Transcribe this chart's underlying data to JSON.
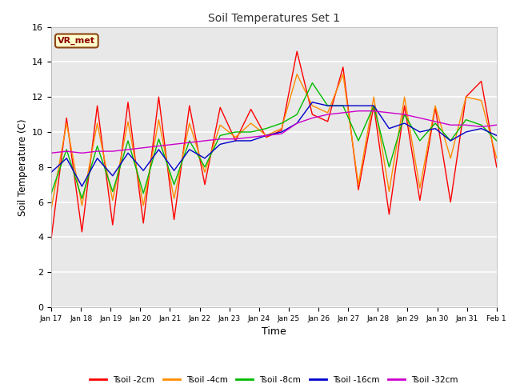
{
  "title": "Soil Temperatures Set 1",
  "xlabel": "Time",
  "ylabel": "Soil Temperature (C)",
  "annotation": "VR_met",
  "ylim": [
    0,
    16
  ],
  "yticks": [
    0,
    2,
    4,
    6,
    8,
    10,
    12,
    14,
    16
  ],
  "figure_bg": "#ffffff",
  "plot_bg": "#e8e8e8",
  "series_colors": [
    "#ff0000",
    "#ff8c00",
    "#00bb00",
    "#0000cc",
    "#cc00cc"
  ],
  "series_labels": [
    "Tsoil -2cm",
    "Tsoil -4cm",
    "Tsoil -8cm",
    "Tsoil -16cm",
    "Tsoil -32cm"
  ],
  "x_tick_labels": [
    "Jan 17",
    "Jan 18",
    "Jan 19",
    "Jan 20",
    "Jan 21",
    "Jan 22",
    "Jan 23",
    "Jan 24",
    "Jan 25",
    "Jan 26",
    "Jan 27",
    "Jan 28",
    "Jan 29",
    "Jan 30",
    "Jan 31",
    "Feb 1"
  ],
  "tsoil_2cm": [
    3.9,
    10.8,
    4.3,
    11.5,
    4.7,
    11.7,
    4.8,
    12.0,
    5.0,
    11.5,
    7.0,
    11.4,
    9.5,
    11.3,
    9.7,
    10.1,
    14.6,
    11.0,
    10.6,
    13.7,
    6.7,
    11.5,
    5.3,
    11.5,
    6.1,
    11.4,
    6.0,
    12.0,
    12.9,
    8.0
  ],
  "tsoil_4cm": [
    5.6,
    10.5,
    5.8,
    10.5,
    6.1,
    10.6,
    5.8,
    10.7,
    6.2,
    10.5,
    7.7,
    10.4,
    9.7,
    10.5,
    9.8,
    10.2,
    13.3,
    11.5,
    11.1,
    13.3,
    7.0,
    12.0,
    6.6,
    12.0,
    6.8,
    11.5,
    8.5,
    12.0,
    11.8,
    8.5
  ],
  "tsoil_8cm": [
    6.5,
    9.0,
    6.2,
    9.2,
    6.6,
    9.5,
    6.5,
    9.6,
    7.0,
    9.5,
    8.0,
    9.8,
    10.0,
    10.0,
    10.2,
    10.5,
    11.0,
    12.8,
    11.5,
    11.5,
    9.5,
    11.5,
    8.0,
    11.0,
    9.5,
    10.5,
    9.5,
    10.7,
    10.4,
    9.5
  ],
  "tsoil_16cm": [
    7.7,
    8.5,
    6.9,
    8.5,
    7.5,
    8.8,
    7.8,
    9.0,
    7.8,
    9.0,
    8.5,
    9.3,
    9.5,
    9.5,
    9.8,
    10.0,
    10.5,
    11.7,
    11.5,
    11.5,
    11.5,
    11.5,
    10.2,
    10.5,
    10.0,
    10.2,
    9.5,
    10.0,
    10.2,
    9.8
  ],
  "tsoil_32cm": [
    8.8,
    8.9,
    8.8,
    8.9,
    8.9,
    9.0,
    9.1,
    9.2,
    9.3,
    9.4,
    9.5,
    9.6,
    9.6,
    9.7,
    9.8,
    9.9,
    10.5,
    10.8,
    11.0,
    11.1,
    11.2,
    11.2,
    11.1,
    11.0,
    10.8,
    10.6,
    10.4,
    10.4,
    10.3,
    10.4
  ]
}
